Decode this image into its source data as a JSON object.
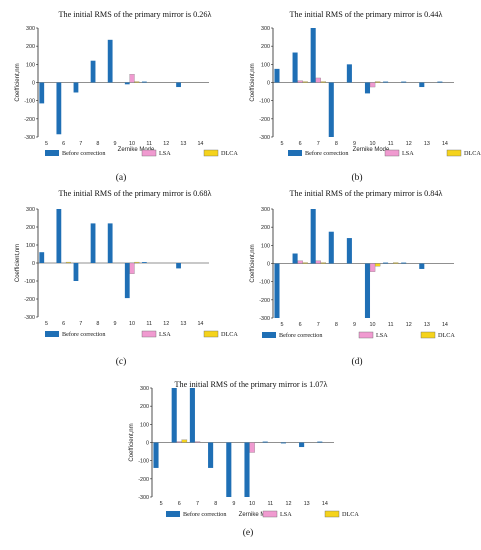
{
  "chart_data": [
    {
      "type": "bar",
      "panel_label": "(a)",
      "title": "The initial RMS of the primary mirror is 0.26λ",
      "xlabel": "Zernike Mode",
      "ylabel": "Coefficient,nm",
      "ylim": [
        -300,
        300
      ],
      "yticks": [
        "300",
        "200",
        "100",
        "0",
        "-100",
        "-200",
        "-300"
      ],
      "categories": [
        "5",
        "6",
        "7",
        "8",
        "9",
        "10",
        "11",
        "12",
        "13",
        "14"
      ],
      "series": [
        {
          "name": "Before correction",
          "color": "#1f6fb5",
          "values": [
            -115,
            -285,
            -55,
            120,
            235,
            -10,
            5,
            0,
            -25,
            0
          ]
        },
        {
          "name": "LSA",
          "color": "#f09ad0",
          "values": [
            0,
            0,
            0,
            0,
            0,
            45,
            0,
            0,
            0,
            0
          ]
        },
        {
          "name": "DLCA",
          "color": "#f5d31c",
          "values": [
            0,
            0,
            0,
            0,
            0,
            5,
            0,
            0,
            0,
            0
          ]
        }
      ],
      "legend": "bottom"
    },
    {
      "type": "bar",
      "panel_label": "(b)",
      "title": "The initial RMS of the primary mirror is 0.44λ",
      "xlabel": "Zernike Mode",
      "ylabel": "Coefficient,nm",
      "ylim": [
        -300,
        300
      ],
      "yticks": [
        "300",
        "200",
        "100",
        "0",
        "-100",
        "-200",
        "-300"
      ],
      "categories": [
        "5",
        "6",
        "7",
        "8",
        "9",
        "10",
        "11",
        "12",
        "13",
        "14"
      ],
      "series": [
        {
          "name": "Before correction",
          "color": "#1f6fb5",
          "values": [
            75,
            165,
            300,
            -300,
            100,
            -60,
            5,
            5,
            -25,
            5
          ]
        },
        {
          "name": "LSA",
          "color": "#f09ad0",
          "values": [
            0,
            10,
            25,
            0,
            0,
            -25,
            0,
            0,
            0,
            0
          ]
        },
        {
          "name": "DLCA",
          "color": "#f5d31c",
          "values": [
            0,
            5,
            5,
            0,
            0,
            5,
            0,
            0,
            0,
            0
          ]
        }
      ],
      "legend": "bottom"
    },
    {
      "type": "bar",
      "panel_label": "(c)",
      "title": "The initial RMS of the primary mirror is 0.68λ",
      "xlabel": "",
      "ylabel": "Coefficient,nm",
      "ylim": [
        -300,
        300
      ],
      "yticks": [
        "300",
        "200",
        "100",
        "0",
        "-100",
        "-200",
        "-300"
      ],
      "categories": [
        "5",
        "6",
        "7",
        "8",
        "9",
        "10",
        "11",
        "12",
        "13",
        "14"
      ],
      "series": [
        {
          "name": "Before correction",
          "color": "#1f6fb5",
          "values": [
            60,
            300,
            -100,
            220,
            220,
            -195,
            5,
            0,
            -30,
            0
          ]
        },
        {
          "name": "LSA",
          "color": "#f09ad0",
          "values": [
            0,
            0,
            0,
            0,
            0,
            -60,
            0,
            0,
            0,
            0
          ]
        },
        {
          "name": "DLCA",
          "color": "#f5d31c",
          "values": [
            0,
            5,
            0,
            0,
            0,
            5,
            0,
            0,
            0,
            0
          ]
        }
      ],
      "legend": "bottom"
    },
    {
      "type": "bar",
      "panel_label": "(d)",
      "title": "The initial RMS of the primary mirror is 0.84λ",
      "xlabel": "",
      "ylabel": "Coefficient,nm",
      "ylim": [
        -300,
        300
      ],
      "yticks": [
        "300",
        "200",
        "100",
        "0",
        "-100",
        "-200",
        "-300"
      ],
      "categories": [
        "5",
        "6",
        "7",
        "8",
        "9",
        "10",
        "11",
        "12",
        "13",
        "14"
      ],
      "series": [
        {
          "name": "Before correction",
          "color": "#1f6fb5",
          "values": [
            -300,
            55,
            300,
            175,
            140,
            -300,
            5,
            5,
            -30,
            0
          ]
        },
        {
          "name": "LSA",
          "color": "#f09ad0",
          "values": [
            0,
            15,
            15,
            0,
            0,
            -45,
            0,
            0,
            0,
            0
          ]
        },
        {
          "name": "DLCA",
          "color": "#f5d31c",
          "values": [
            0,
            5,
            5,
            0,
            0,
            -15,
            5,
            0,
            0,
            0
          ]
        }
      ],
      "legend": "bottom"
    },
    {
      "type": "bar",
      "panel_label": "(e)",
      "title": "The initial RMS of the primary mirror is 1.07λ",
      "xlabel": "Zernike Mode",
      "ylabel": "Coefficient,nm",
      "ylim": [
        -300,
        300
      ],
      "yticks": [
        "300",
        "200",
        "100",
        "0",
        "-100",
        "-200",
        "-300"
      ],
      "categories": [
        "5",
        "6",
        "7",
        "8",
        "9",
        "10",
        "11",
        "12",
        "13",
        "14"
      ],
      "series": [
        {
          "name": "Before correction",
          "color": "#1f6fb5",
          "values": [
            -140,
            300,
            300,
            -140,
            -300,
            -300,
            5,
            -5,
            -25,
            5
          ]
        },
        {
          "name": "LSA",
          "color": "#f09ad0",
          "values": [
            0,
            5,
            5,
            0,
            0,
            -55,
            0,
            0,
            0,
            0
          ]
        },
        {
          "name": "DLCA",
          "color": "#f5d31c",
          "values": [
            0,
            15,
            0,
            0,
            0,
            0,
            0,
            0,
            0,
            0
          ]
        }
      ],
      "legend": "bottom"
    }
  ]
}
